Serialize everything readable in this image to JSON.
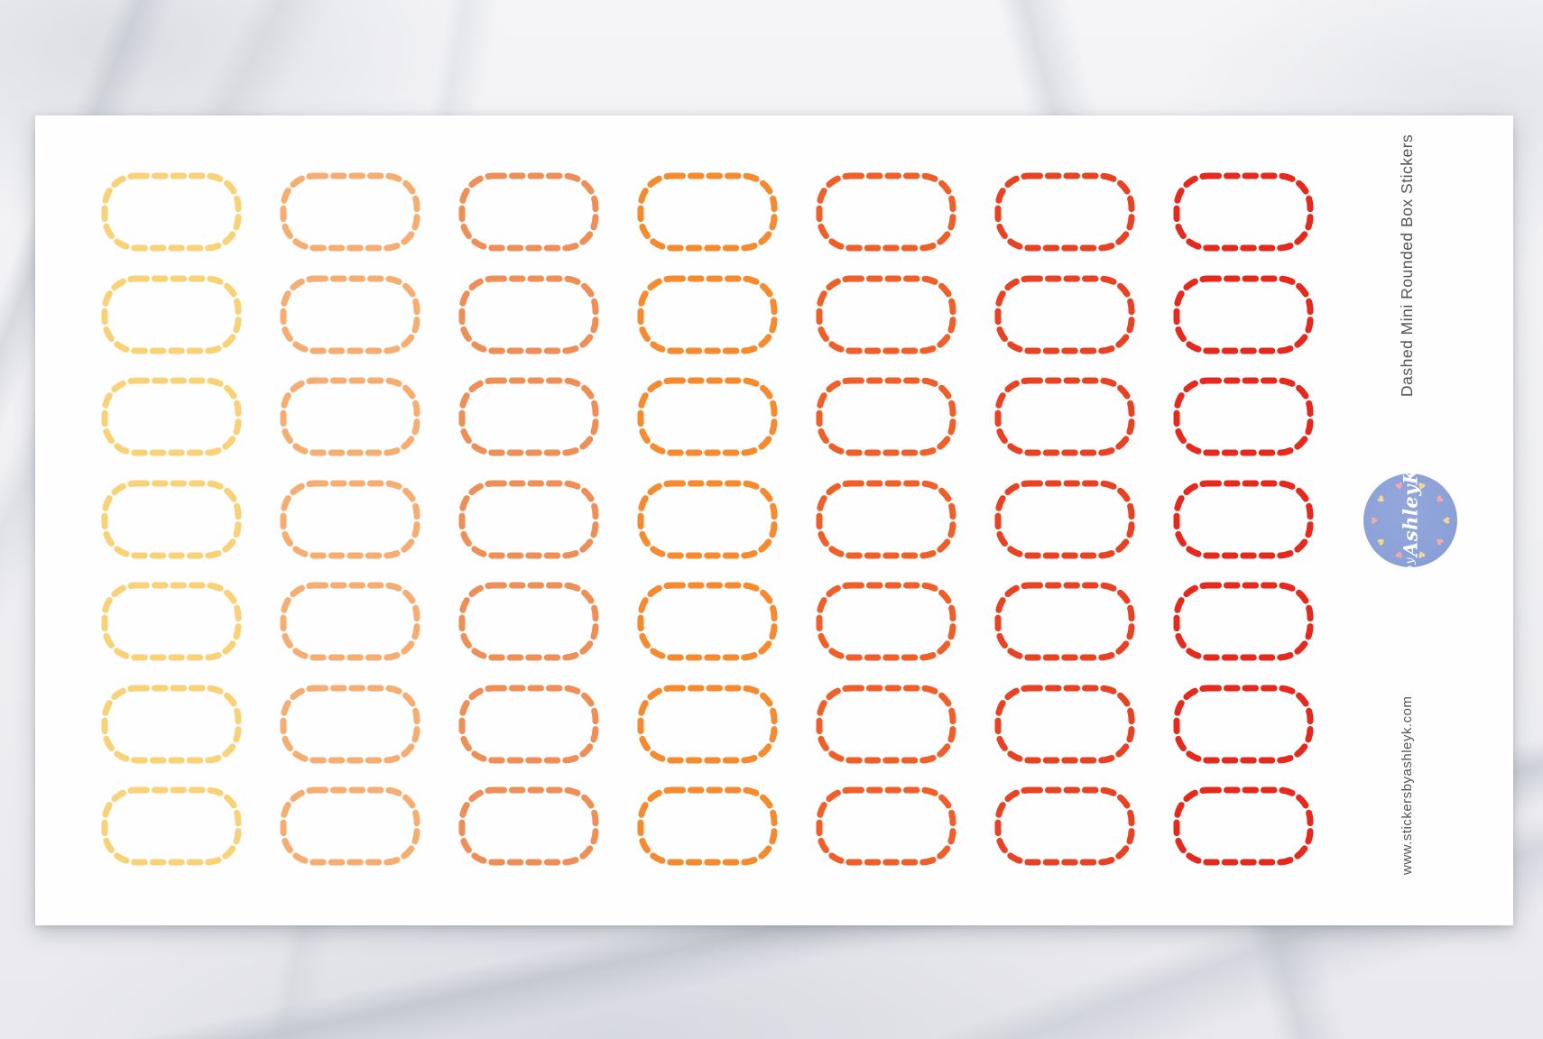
{
  "sheet": {
    "title": "Dashed Mini Rounded Box Stickers",
    "website": "www.stickersbyashleyk.com",
    "text_color": "#54565A",
    "paper_color": "#FEFEFE"
  },
  "stickers": {
    "shape": "dashed-rounded-box",
    "rows": 7,
    "columns": 7,
    "column_colors": [
      "#F9D277",
      "#F6AD72",
      "#EF8F58",
      "#F68A2E",
      "#EF5F2A",
      "#E84224",
      "#E5291D"
    ]
  },
  "logo": {
    "line1": "by",
    "line2": "AshleyK",
    "circle_color": "#8CA2D8",
    "heart_count": 10,
    "heart_colors": [
      "#F2ABA6",
      "#F4D794"
    ]
  }
}
